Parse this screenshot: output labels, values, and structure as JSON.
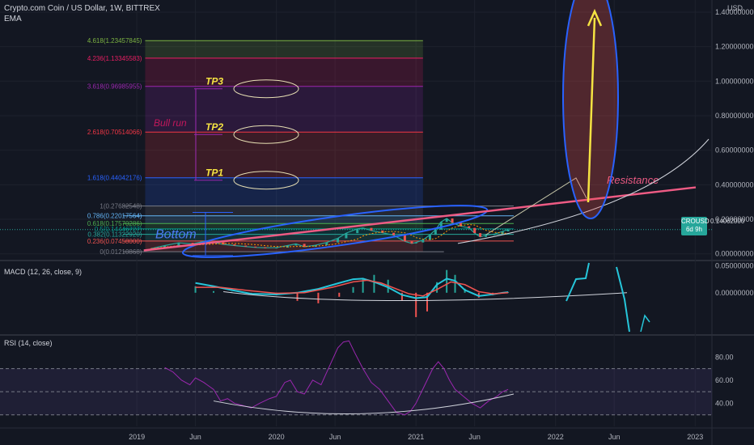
{
  "header": {
    "title": "Crypto.com Coin / US Dollar, 1W, BITTREX",
    "indicator": "EMA",
    "currency": "USD"
  },
  "price_tag": {
    "symbol": "CROUSD",
    "countdown": "6d 9h",
    "value": "0.14062000"
  },
  "colors": {
    "bg": "#131722",
    "up": "#26a69a",
    "down": "#ef5350",
    "accent_blue": "#2962ff",
    "annot_yellow": "#f5e342",
    "resistance": "#ee5b84"
  },
  "chart_data": [
    {
      "type": "line",
      "title": "Crypto.com Coin / US Dollar, 1W, BITTREX",
      "y_tick_labels": [
        "1.40000000",
        "1.20000000",
        "1.00000000",
        "0.80000000",
        "0.60000000",
        "0.40000000",
        "0.20000000",
        "0.00000000"
      ],
      "y_ticks": [
        1.4,
        1.2,
        1.0,
        0.8,
        0.6,
        0.4,
        0.2,
        0.0
      ],
      "ylim": [
        -0.02,
        1.47
      ],
      "x_tick_labels": [
        "2019",
        "Jun",
        "2020",
        "Jun",
        "2021",
        "Jun",
        "2022",
        "Jun",
        "2023"
      ],
      "x_ticks": [
        2019.0,
        2019.42,
        2020.0,
        2020.42,
        2021.0,
        2021.42,
        2022.0,
        2022.42,
        2023.0
      ],
      "xlim": [
        2018.02,
        2023.12
      ],
      "fib_levels": [
        {
          "label": "4.618(1.23457845)",
          "value": 1.23457845,
          "color": "#7cb342"
        },
        {
          "label": "4.236(1.13345583)",
          "value": 1.13345583,
          "color": "#e91e63"
        },
        {
          "label": "3.618(0.96985955)",
          "value": 0.96985955,
          "color": "#9c27b0"
        },
        {
          "label": "2.618(0.70514066)",
          "value": 0.70514066,
          "color": "#f23645"
        },
        {
          "label": "1.618(0.44042176)",
          "value": 0.44042176,
          "color": "#2962ff"
        },
        {
          "label": "1(0.27682548)",
          "value": 0.27682548,
          "color": "#787b86"
        },
        {
          "label": "0.786(0.22017564)",
          "value": 0.22017564,
          "color": "#64b5f6"
        },
        {
          "label": "0.618(0.17570286)",
          "value": 0.17570286,
          "color": "#4caf50"
        },
        {
          "label": "0.5(0.14446727)",
          "value": 0.14446727,
          "color": "#009688"
        },
        {
          "label": "0.382(0.11322920)",
          "value": 0.1132292,
          "color": "#26a69a"
        },
        {
          "label": "0.236(0.07458000)",
          "value": 0.07458,
          "color": "#ef5350"
        },
        {
          "label": "0(0.01210868)",
          "value": 0.01210868,
          "color": "#787b86"
        }
      ],
      "fib_x_range": [
        2019.06,
        2021.05
      ],
      "series": [
        {
          "values": [
            [
              2019.1,
              0.03
            ],
            [
              2019.2,
              0.048
            ],
            [
              2019.3,
              0.064
            ],
            [
              2019.4,
              0.058
            ],
            [
              2019.48,
              0.072
            ],
            [
              2019.55,
              0.066
            ],
            [
              2019.62,
              0.055
            ],
            [
              2019.7,
              0.048
            ],
            [
              2019.78,
              0.042
            ],
            [
              2019.85,
              0.037
            ],
            [
              2019.92,
              0.035
            ],
            [
              2020.0,
              0.036
            ],
            [
              2020.08,
              0.048
            ],
            [
              2020.14,
              0.058
            ],
            [
              2020.2,
              0.041
            ],
            [
              2020.28,
              0.05
            ],
            [
              2020.36,
              0.066
            ],
            [
              2020.44,
              0.09
            ],
            [
              2020.5,
              0.12
            ],
            [
              2020.58,
              0.145
            ],
            [
              2020.62,
              0.15
            ],
            [
              2020.68,
              0.135
            ],
            [
              2020.76,
              0.122
            ],
            [
              2020.84,
              0.108
            ],
            [
              2020.92,
              0.072
            ],
            [
              2020.97,
              0.06
            ],
            [
              2021.0,
              0.066
            ],
            [
              2021.05,
              0.08
            ],
            [
              2021.1,
              0.11
            ],
            [
              2021.14,
              0.14
            ],
            [
              2021.18,
              0.185
            ],
            [
              2021.22,
              0.205
            ],
            [
              2021.26,
              0.18
            ],
            [
              2021.32,
              0.16
            ],
            [
              2021.38,
              0.15
            ],
            [
              2021.42,
              0.12
            ],
            [
              2021.46,
              0.098
            ],
            [
              2021.5,
              0.108
            ],
            [
              2021.56,
              0.114
            ],
            [
              2021.62,
              0.13
            ],
            [
              2021.66,
              0.141
            ]
          ]
        }
      ]
    },
    {
      "type": "line",
      "title": "MACD (12, 26, close, 9)",
      "y_tick_labels": [
        "0.05000000",
        "0.00000000"
      ],
      "y_ticks": [
        0.05,
        0.0
      ],
      "ylim": [
        -0.075,
        0.055
      ],
      "xlim": [
        2018.02,
        2023.12
      ],
      "series": [
        {
          "values": [
            [
              2019.42,
              0.018
            ],
            [
              2019.55,
              0.012
            ],
            [
              2019.68,
              0.005
            ],
            [
              2019.82,
              -0.002
            ],
            [
              2020.0,
              -0.003
            ],
            [
              2020.15,
              0.0
            ],
            [
              2020.3,
              0.007
            ],
            [
              2020.45,
              0.018
            ],
            [
              2020.55,
              0.025
            ],
            [
              2020.62,
              0.026
            ],
            [
              2020.7,
              0.02
            ],
            [
              2020.8,
              0.01
            ],
            [
              2020.9,
              -0.004
            ],
            [
              2021.0,
              -0.01
            ],
            [
              2021.08,
              -0.008
            ],
            [
              2021.15,
              0.015
            ],
            [
              2021.22,
              0.026
            ],
            [
              2021.28,
              0.022
            ],
            [
              2021.35,
              0.005
            ],
            [
              2021.45,
              -0.006
            ],
            [
              2021.55,
              -0.003
            ],
            [
              2021.62,
              0.0
            ],
            [
              2021.66,
              0.001
            ]
          ]
        },
        {
          "values": [
            [
              2019.42,
              0.01
            ],
            [
              2019.6,
              0.01
            ],
            [
              2019.8,
              0.004
            ],
            [
              2020.0,
              -0.001
            ],
            [
              2020.2,
              0.0
            ],
            [
              2020.4,
              0.01
            ],
            [
              2020.55,
              0.02
            ],
            [
              2020.65,
              0.023
            ],
            [
              2020.75,
              0.018
            ],
            [
              2020.85,
              0.008
            ],
            [
              2020.95,
              -0.002
            ],
            [
              2021.05,
              -0.006
            ],
            [
              2021.15,
              0.006
            ],
            [
              2021.25,
              0.02
            ],
            [
              2021.35,
              0.015
            ],
            [
              2021.45,
              0.002
            ],
            [
              2021.55,
              -0.002
            ],
            [
              2021.66,
              0.0
            ]
          ]
        }
      ]
    },
    {
      "type": "line",
      "title": "RSI (14, close)",
      "y_tick_labels": [
        "80.00",
        "60.00",
        "40.00"
      ],
      "y_ticks": [
        80,
        60,
        40
      ],
      "ylim": [
        20,
        97
      ],
      "bands": [
        70,
        50,
        30
      ],
      "xlim": [
        2018.02,
        2023.12
      ],
      "series": [
        {
          "values": [
            [
              2019.2,
              71
            ],
            [
              2019.26,
              67
            ],
            [
              2019.32,
              60
            ],
            [
              2019.38,
              56
            ],
            [
              2019.42,
              62
            ],
            [
              2019.48,
              58
            ],
            [
              2019.55,
              52
            ],
            [
              2019.6,
              42
            ],
            [
              2019.65,
              44
            ],
            [
              2019.7,
              40
            ],
            [
              2019.76,
              38
            ],
            [
              2019.82,
              36
            ],
            [
              2019.88,
              40
            ],
            [
              2019.95,
              44
            ],
            [
              2020.0,
              46
            ],
            [
              2020.06,
              58
            ],
            [
              2020.1,
              60
            ],
            [
              2020.15,
              50
            ],
            [
              2020.2,
              48
            ],
            [
              2020.26,
              60
            ],
            [
              2020.32,
              56
            ],
            [
              2020.38,
              72
            ],
            [
              2020.44,
              88
            ],
            [
              2020.48,
              93
            ],
            [
              2020.52,
              94
            ],
            [
              2020.56,
              84
            ],
            [
              2020.62,
              70
            ],
            [
              2020.68,
              58
            ],
            [
              2020.74,
              52
            ],
            [
              2020.8,
              42
            ],
            [
              2020.86,
              32
            ],
            [
              2020.92,
              30
            ],
            [
              2020.96,
              33
            ],
            [
              2021.0,
              40
            ],
            [
              2021.04,
              50
            ],
            [
              2021.08,
              60
            ],
            [
              2021.12,
              70
            ],
            [
              2021.16,
              76
            ],
            [
              2021.2,
              70
            ],
            [
              2021.24,
              60
            ],
            [
              2021.28,
              52
            ],
            [
              2021.34,
              46
            ],
            [
              2021.4,
              40
            ],
            [
              2021.46,
              36
            ],
            [
              2021.52,
              42
            ],
            [
              2021.58,
              46
            ],
            [
              2021.62,
              50
            ],
            [
              2021.66,
              52
            ]
          ]
        }
      ]
    }
  ],
  "annotations": {
    "tp3": "TP3",
    "tp2": "TP2",
    "tp1": "TP1",
    "bull_run": "Bull run",
    "bottom": "Bottom",
    "resistance": "Resistance"
  }
}
